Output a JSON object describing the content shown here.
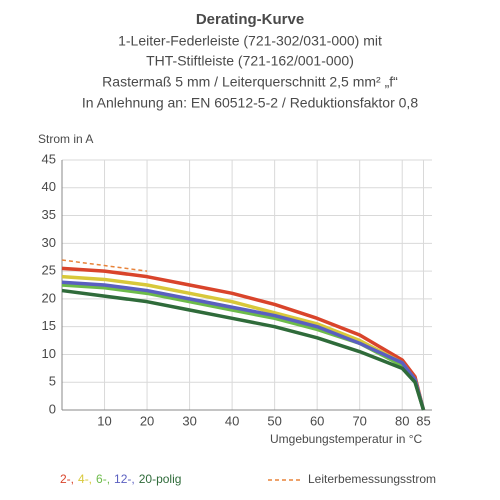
{
  "chart_data": {
    "type": "line",
    "title": "Derating-Kurve",
    "subtitle": [
      "1-Leiter-Federleiste (721-302/031-000) mit",
      "THT-Stiftleiste (721-162/001-000)",
      "Rastermaß 5 mm / Leiterquerschnitt 2,5 mm² „f“",
      "In Anlehnung an: EN 60512-5-2 / Reduktionsfaktor 0,8"
    ],
    "y_label": "Strom in A",
    "x_label": "Umgebungstemperatur in °C",
    "x": [
      0,
      10,
      20,
      30,
      40,
      50,
      60,
      70,
      80,
      83,
      85
    ],
    "series": [
      {
        "name": "2-,",
        "color": "#d9442b",
        "values": [
          25.5,
          25,
          24,
          22.5,
          21,
          19,
          16.5,
          13.5,
          9,
          6,
          0
        ]
      },
      {
        "name": "4-,",
        "color": "#d8c83a",
        "values": [
          24,
          23.5,
          22.5,
          21,
          19.5,
          17.5,
          15.5,
          12.5,
          8.5,
          5.5,
          0
        ]
      },
      {
        "name": "6-,",
        "color": "#6dbb4a",
        "values": [
          22.5,
          22,
          21,
          19.5,
          18,
          16.5,
          14.5,
          12,
          8,
          5.2,
          0
        ]
      },
      {
        "name": "12-,",
        "color": "#5a5fc0",
        "values": [
          23,
          22.5,
          21.5,
          20,
          18.5,
          17,
          15,
          12,
          8.5,
          5.5,
          0
        ]
      },
      {
        "name": "20-polig",
        "color": "#2f6b3a",
        "values": [
          21.5,
          20.5,
          19.5,
          18,
          16.5,
          15,
          13,
          10.5,
          7.5,
          5,
          0
        ]
      },
      {
        "name": "Leiterbemessungsstrom",
        "color": "#e8833a",
        "dashed": true,
        "values": [
          27,
          26,
          25,
          null,
          null,
          null,
          null,
          null,
          null,
          null,
          null
        ]
      }
    ],
    "xlim": [
      0,
      87
    ],
    "xticks": [
      10,
      20,
      30,
      40,
      50,
      60,
      70,
      80,
      85
    ],
    "ylim": [
      0,
      45
    ],
    "yticks": [
      0,
      5,
      10,
      15,
      20,
      25,
      30,
      35,
      40,
      45
    ],
    "grid": true
  }
}
